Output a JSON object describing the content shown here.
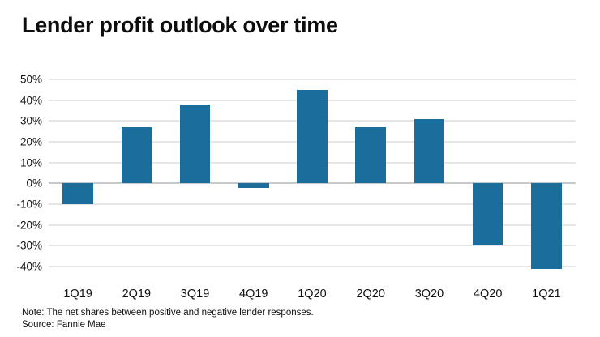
{
  "title": "Lender profit outlook over time",
  "notes": {
    "note": "Note: The net shares between positive and negative lender responses.",
    "source": "Source: Fannie Mae"
  },
  "chart_data": {
    "type": "bar",
    "title": "Lender profit outlook over time",
    "categories": [
      "1Q19",
      "2Q19",
      "3Q19",
      "4Q19",
      "1Q20",
      "2Q20",
      "3Q20",
      "4Q20",
      "1Q21"
    ],
    "values": [
      -10,
      27,
      38,
      -2,
      45,
      27,
      31,
      -30,
      -41
    ],
    "xlabel": "",
    "ylabel": "",
    "ylim": [
      -45,
      50
    ],
    "yticks": [
      50,
      40,
      30,
      20,
      10,
      0,
      -10,
      -20,
      -30,
      -40
    ],
    "ytick_suffix": "%",
    "bar_color": "#1b6d9b",
    "grid": true,
    "legend_position": "none",
    "note": "Note: The net shares between positive and negative lender responses.",
    "source": "Source: Fannie Mae"
  }
}
